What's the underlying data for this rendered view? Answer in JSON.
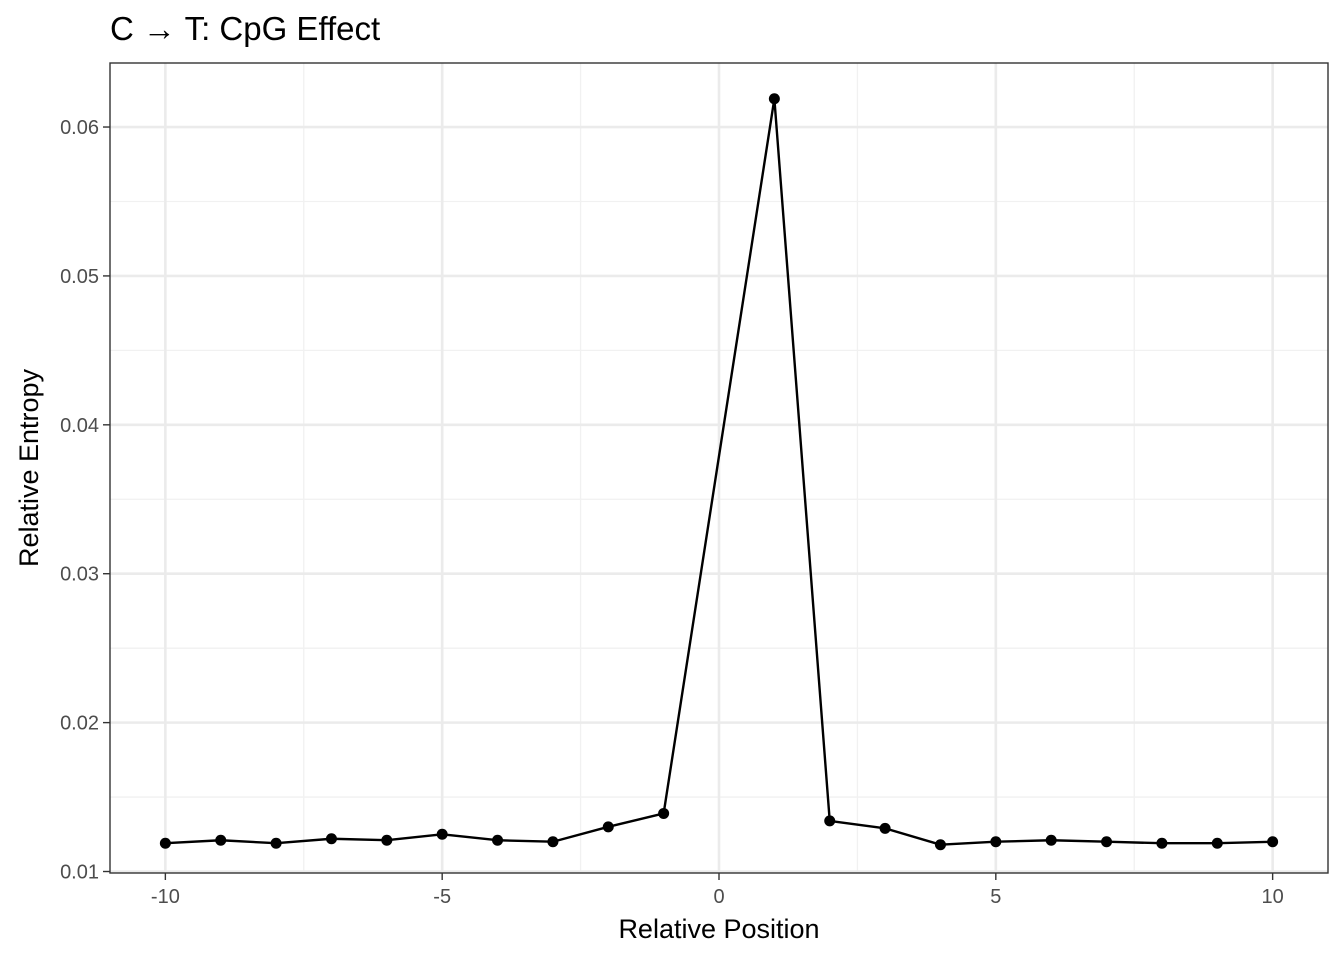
{
  "chart_data": {
    "type": "line",
    "title": "C → T: CpG Effect",
    "xlabel": "Relative Position",
    "ylabel": "Relative Entropy",
    "xlim": [
      -11,
      11
    ],
    "ylim": [
      0.0099,
      0.0643
    ],
    "x_ticks": [
      -10,
      -5,
      0,
      5,
      10
    ],
    "x_tick_labels": [
      "-10",
      "-5",
      "0",
      "5",
      "10"
    ],
    "y_ticks": [
      0.01,
      0.02,
      0.03,
      0.04,
      0.05,
      0.06
    ],
    "y_tick_labels": [
      "0.01",
      "0.02",
      "0.03",
      "0.04",
      "0.05",
      "0.06"
    ],
    "grid": true,
    "series": [
      {
        "x": [
          -10,
          -9,
          -8,
          -7,
          -6,
          -5,
          -4,
          -3,
          -2,
          -1,
          1,
          2,
          3,
          4,
          5,
          6,
          7,
          8,
          9,
          10
        ],
        "values": [
          0.0119,
          0.0121,
          0.0119,
          0.0122,
          0.0121,
          0.0125,
          0.0121,
          0.012,
          0.013,
          0.0139,
          0.0619,
          0.0134,
          0.0129,
          0.0118,
          0.012,
          0.0121,
          0.012,
          0.0119,
          0.0119,
          0.012
        ],
        "color": "#000000"
      }
    ]
  }
}
